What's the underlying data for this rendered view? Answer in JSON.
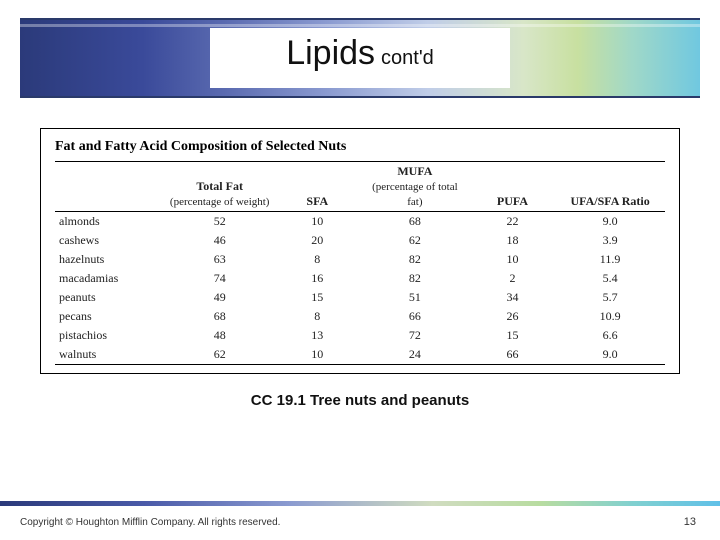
{
  "title": {
    "main": "Lipids",
    "sub": "cont'd"
  },
  "table": {
    "type": "table",
    "title": "Fat and Fatty Acid Composition of Selected Nuts",
    "header_top": {
      "total_fat": "Total Fat",
      "total_fat_sub": "(percentage of weight)",
      "sfa": "SFA",
      "mufa": "MUFA",
      "mid_sub": "(percentage of total fat)",
      "pufa": "PUFA",
      "ratio": "UFA/SFA Ratio"
    },
    "columns": [
      "name",
      "total_fat",
      "sfa",
      "mufa",
      "pufa",
      "ratio"
    ],
    "col_widths_pct": [
      18,
      18,
      14,
      18,
      14,
      18
    ],
    "rows": [
      {
        "name": "almonds",
        "total_fat": "52",
        "sfa": "10",
        "mufa": "68",
        "pufa": "22",
        "ratio": "9.0"
      },
      {
        "name": "cashews",
        "total_fat": "46",
        "sfa": "20",
        "mufa": "62",
        "pufa": "18",
        "ratio": "3.9"
      },
      {
        "name": "hazelnuts",
        "total_fat": "63",
        "sfa": "8",
        "mufa": "82",
        "pufa": "10",
        "ratio": "11.9"
      },
      {
        "name": "macadamias",
        "total_fat": "74",
        "sfa": "16",
        "mufa": "82",
        "pufa": "2",
        "ratio": "5.4"
      },
      {
        "name": "peanuts",
        "total_fat": "49",
        "sfa": "15",
        "mufa": "51",
        "pufa": "34",
        "ratio": "5.7"
      },
      {
        "name": "pecans",
        "total_fat": "68",
        "sfa": "8",
        "mufa": "66",
        "pufa": "26",
        "ratio": "10.9"
      },
      {
        "name": "pistachios",
        "total_fat": "48",
        "sfa": "13",
        "mufa": "72",
        "pufa": "15",
        "ratio": "6.6"
      },
      {
        "name": "walnuts",
        "total_fat": "62",
        "sfa": "10",
        "mufa": "24",
        "pufa": "66",
        "ratio": "9.0"
      }
    ],
    "border_color": "#000000",
    "text_color": "#222222",
    "font_family": "Times New Roman",
    "title_fontsize_pt": 14,
    "body_fontsize_pt": 12
  },
  "caption": "CC 19.1 Tree nuts and peanuts",
  "footer": {
    "copyright": "Copyright © Houghton Mifflin Company. All rights reserved.",
    "page": "13"
  },
  "colors": {
    "slide_bg": "#ffffff",
    "band_gradient": [
      "#2b3a7a",
      "#3a4a9a",
      "#5a6ab0",
      "#8a9ad0",
      "#c0cde8",
      "#d8e6c8",
      "#c8e0a0",
      "#a0d8c8",
      "#70c8e0"
    ],
    "band_border": "#2a3a6a"
  }
}
